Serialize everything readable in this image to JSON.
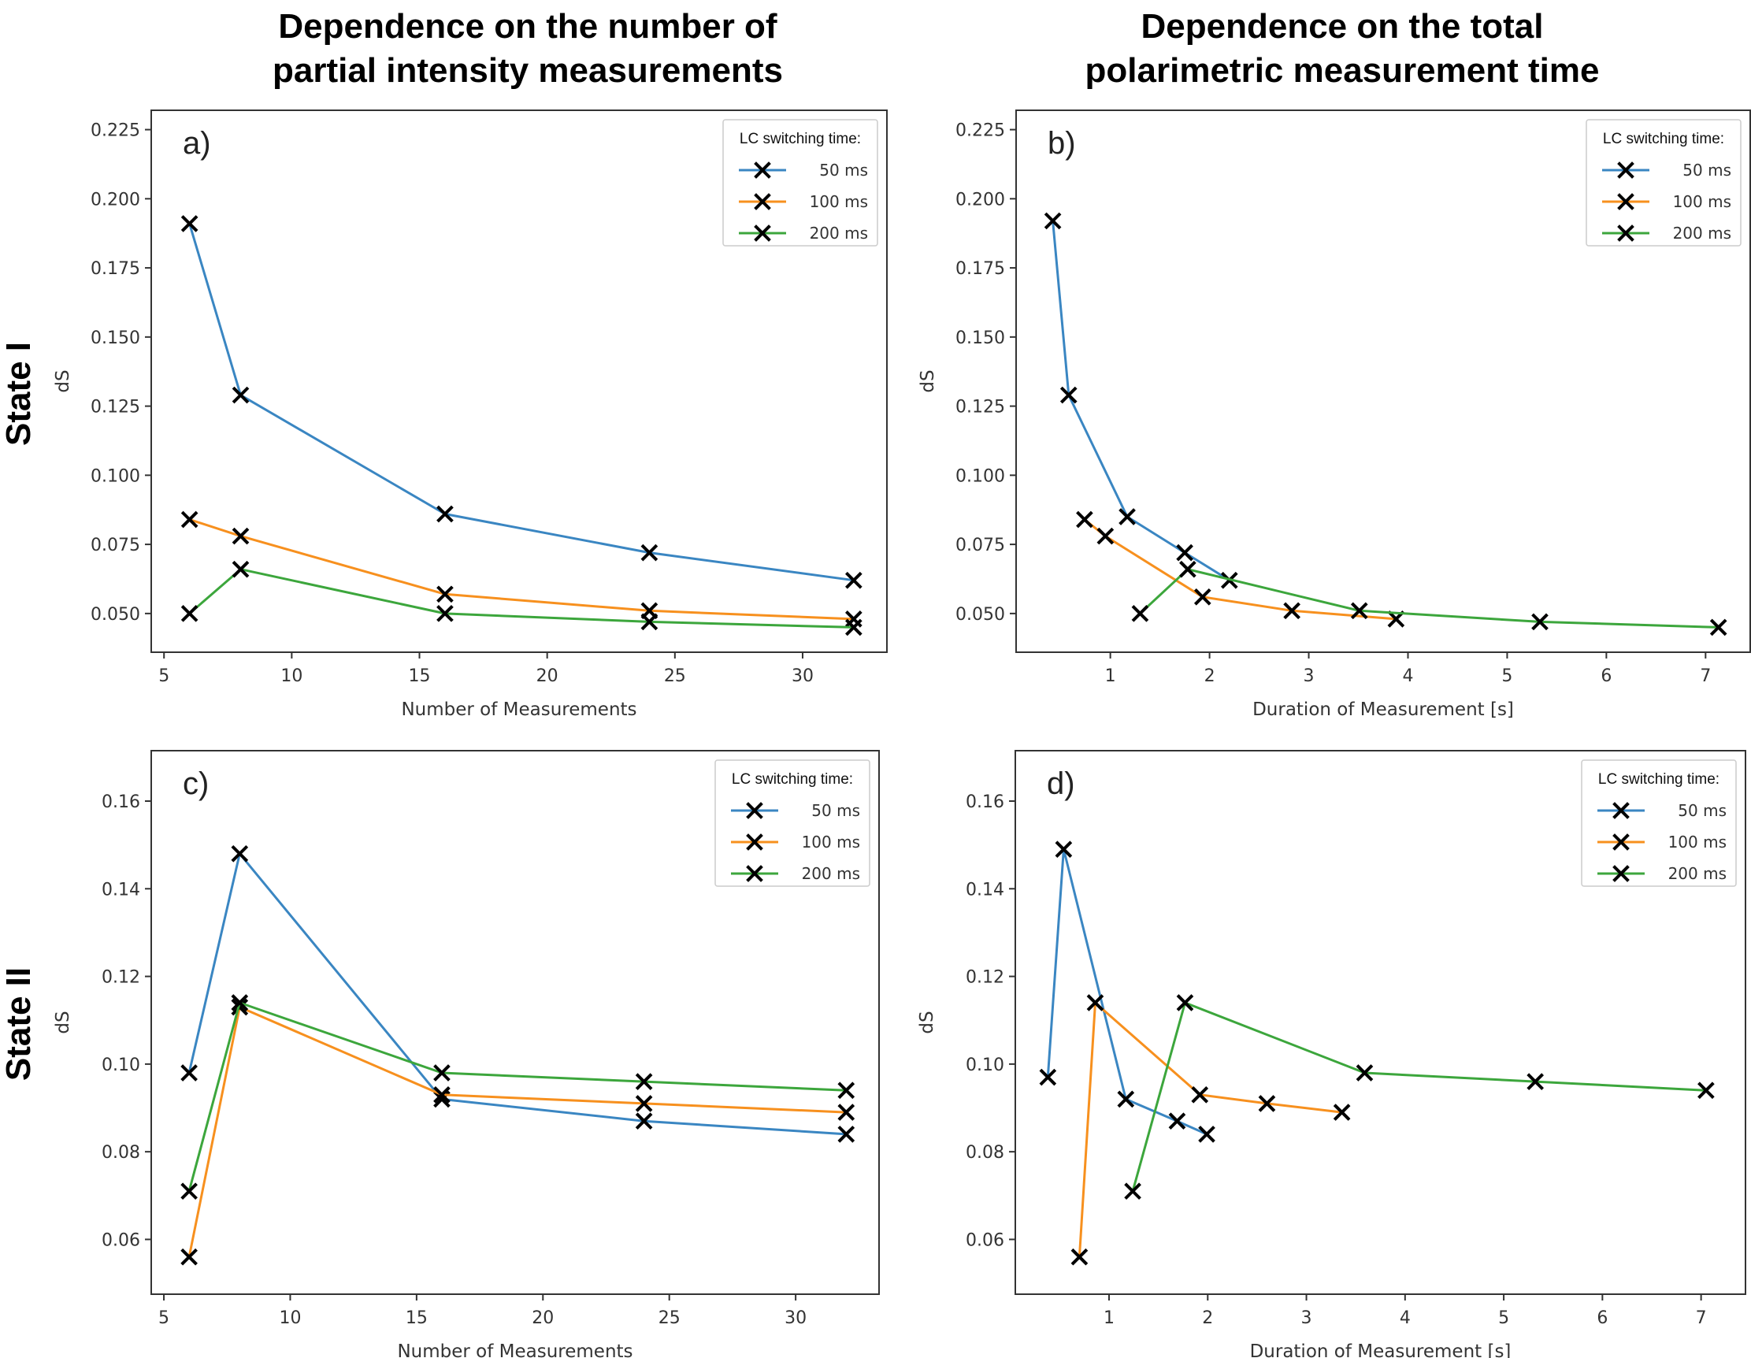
{
  "column_titles": [
    "Dependence on the number of",
    "partial intensity measurements",
    "Dependence on the total",
    "polarimetric measurement time"
  ],
  "row_titles": [
    "State I",
    "State II"
  ],
  "colors": {
    "50 ms": "#3a86c2",
    "100 ms": "#f7901e",
    "200 ms": "#3ca63c",
    "marker": "#000000",
    "frame": "#333333"
  },
  "chart_data": [
    {
      "type": "line",
      "panel": "a)",
      "legend_title": "LC switching time:",
      "legend_loc": "upper right",
      "xlabel": "Number of Measurements",
      "ylabel": "dS",
      "xlim": [
        4.5,
        33.3
      ],
      "ylim": [
        0.036,
        0.232
      ],
      "xticks": [
        5,
        10,
        15,
        20,
        25,
        30
      ],
      "yticks": [
        0.05,
        0.075,
        0.1,
        0.125,
        0.15,
        0.175,
        0.2,
        0.225
      ],
      "ytick_labels": [
        "0.050",
        "0.075",
        "0.100",
        "0.125",
        "0.150",
        "0.175",
        "0.200",
        "0.225"
      ],
      "series": [
        {
          "name": "50 ms",
          "x": [
            6,
            8,
            16,
            24,
            32
          ],
          "y": [
            0.191,
            0.129,
            0.086,
            0.072,
            0.062
          ]
        },
        {
          "name": "100 ms",
          "x": [
            6,
            8,
            16,
            24,
            32
          ],
          "y": [
            0.084,
            0.078,
            0.057,
            0.051,
            0.048
          ]
        },
        {
          "name": "200 ms",
          "x": [
            6,
            8,
            16,
            24,
            32
          ],
          "y": [
            0.05,
            0.066,
            0.05,
            0.047,
            0.045
          ]
        }
      ]
    },
    {
      "type": "line",
      "panel": "b)",
      "legend_title": "LC switching time:",
      "legend_loc": "upper right",
      "xlabel": "Duration of Measurement [s]",
      "ylabel": "dS",
      "xlim": [
        0.05,
        7.45
      ],
      "ylim": [
        0.036,
        0.232
      ],
      "xticks": [
        1,
        2,
        3,
        4,
        5,
        6,
        7
      ],
      "yticks": [
        0.05,
        0.075,
        0.1,
        0.125,
        0.15,
        0.175,
        0.2,
        0.225
      ],
      "ytick_labels": [
        "0.050",
        "0.075",
        "0.100",
        "0.125",
        "0.150",
        "0.175",
        "0.200",
        "0.225"
      ],
      "series": [
        {
          "name": "50 ms",
          "x": [
            0.42,
            0.58,
            1.17,
            1.75,
            2.2
          ],
          "y": [
            0.192,
            0.129,
            0.085,
            0.072,
            0.062
          ]
        },
        {
          "name": "100 ms",
          "x": [
            0.74,
            0.95,
            1.93,
            2.83,
            3.88
          ],
          "y": [
            0.084,
            0.078,
            0.056,
            0.051,
            0.048
          ]
        },
        {
          "name": "200 ms",
          "x": [
            1.3,
            1.78,
            3.51,
            5.33,
            7.13
          ],
          "y": [
            0.05,
            0.066,
            0.051,
            0.047,
            0.045
          ]
        }
      ]
    },
    {
      "type": "line",
      "panel": "c)",
      "legend_title": "LC switching time:",
      "legend_loc": "upper right",
      "xlabel": "Number of Measurements",
      "ylabel": "dS",
      "xlim": [
        4.5,
        33.3
      ],
      "ylim": [
        0.0475,
        0.1715
      ],
      "xticks": [
        5,
        10,
        15,
        20,
        25,
        30
      ],
      "yticks": [
        0.06,
        0.08,
        0.1,
        0.12,
        0.14,
        0.16
      ],
      "ytick_labels": [
        "0.06",
        "0.08",
        "0.10",
        "0.12",
        "0.14",
        "0.16"
      ],
      "series": [
        {
          "name": "50 ms",
          "x": [
            6,
            8,
            16,
            24,
            32
          ],
          "y": [
            0.098,
            0.148,
            0.092,
            0.087,
            0.084
          ]
        },
        {
          "name": "100 ms",
          "x": [
            6,
            8,
            16,
            24,
            32
          ],
          "y": [
            0.056,
            0.113,
            0.093,
            0.091,
            0.089
          ]
        },
        {
          "name": "200 ms",
          "x": [
            6,
            8,
            16,
            24,
            32
          ],
          "y": [
            0.071,
            0.114,
            0.098,
            0.096,
            0.094
          ]
        }
      ]
    },
    {
      "type": "line",
      "panel": "d)",
      "legend_title": "LC switching time:",
      "legend_loc": "upper right",
      "xlabel": "Duration of Measurement [s]",
      "ylabel": "dS",
      "xlim": [
        0.05,
        7.45
      ],
      "ylim": [
        0.0475,
        0.1715
      ],
      "xticks": [
        1,
        2,
        3,
        4,
        5,
        6,
        7
      ],
      "yticks": [
        0.06,
        0.08,
        0.1,
        0.12,
        0.14,
        0.16
      ],
      "ytick_labels": [
        "0.06",
        "0.08",
        "0.10",
        "0.12",
        "0.14",
        "0.16"
      ],
      "series": [
        {
          "name": "50 ms",
          "x": [
            0.38,
            0.54,
            1.17,
            1.69,
            1.99
          ],
          "y": [
            0.097,
            0.149,
            0.092,
            0.087,
            0.084
          ]
        },
        {
          "name": "100 ms",
          "x": [
            0.7,
            0.86,
            1.92,
            2.6,
            3.36
          ],
          "y": [
            0.056,
            0.114,
            0.093,
            0.091,
            0.089
          ]
        },
        {
          "name": "200 ms",
          "x": [
            1.24,
            1.77,
            3.59,
            5.32,
            7.05
          ],
          "y": [
            0.071,
            0.114,
            0.098,
            0.096,
            0.094
          ]
        }
      ]
    }
  ]
}
